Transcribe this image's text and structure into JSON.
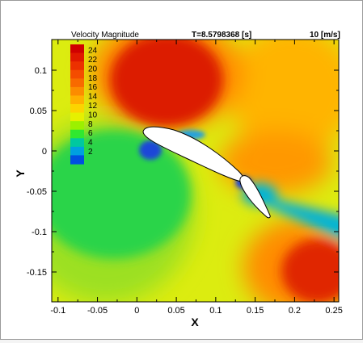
{
  "chart_data": {
    "type": "heatmap",
    "title": "Velocity Magnitude",
    "time_label": "T=8.5798368 [s]",
    "reference_vector_label": "10 [m/s]",
    "xlabel": "X",
    "ylabel": "Y",
    "xlim": [
      -0.108,
      0.256
    ],
    "ylim": [
      -0.187,
      0.138
    ],
    "x_ticks": [
      -0.1,
      -0.05,
      0,
      0.05,
      0.1,
      0.15,
      0.2,
      0.25
    ],
    "x_tick_labels": [
      "-0.1",
      "-0.05",
      "0",
      "0.05",
      "0.1",
      "0.15",
      "0.2",
      "0.25"
    ],
    "y_ticks": [
      0.1,
      0.05,
      0,
      -0.05,
      -0.1,
      -0.15
    ],
    "y_tick_labels": [
      "0.1",
      "0.05",
      "0",
      "-0.05",
      "-0.1",
      "-0.15"
    ],
    "colorbar": {
      "levels": [
        24,
        22,
        20,
        18,
        16,
        14,
        12,
        10,
        8,
        6,
        4,
        2
      ],
      "labels": [
        "24",
        "22",
        "20",
        "18",
        "16",
        "14",
        "12",
        "10",
        "8",
        "6",
        "4",
        "2"
      ],
      "colors": [
        "#d00000",
        "#e01800",
        "#ec3000",
        "#f44c00",
        "#f86a00",
        "#fc8c00",
        "#ffb000",
        "#fcd400",
        "#e6f000",
        "#9cf000",
        "#30e830",
        "#00c8a0",
        "#00a0e0",
        "#0050e0"
      ]
    },
    "field_colors": {
      "background": "#dcec10",
      "high_speed": "#dc1c00",
      "low_speed": "#2cd448",
      "wake_low": "#00b4d8",
      "stagnation": "#1a46d8"
    },
    "airfoils": [
      {
        "name": "main element",
        "leading_edge": [
          0.006,
          0.029
        ],
        "trailing_edge": [
          0.134,
          -0.036
        ]
      },
      {
        "name": "flap",
        "leading_edge": [
          0.13,
          -0.038
        ],
        "trailing_edge": [
          0.166,
          -0.083
        ]
      }
    ]
  }
}
